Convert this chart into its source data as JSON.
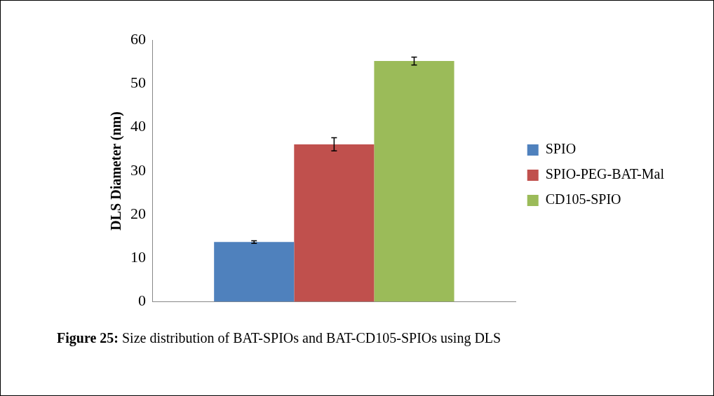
{
  "chart_data": {
    "type": "bar",
    "ylabel": "DLS Diameter (nm)",
    "categories": [
      null
    ],
    "series": [
      {
        "name": "SPIO",
        "color": "#4f81bd",
        "values": [
          13.7
        ],
        "errors": [
          0.3
        ]
      },
      {
        "name": "SPIO-PEG-BAT-Mal",
        "color": "#c0504d",
        "values": [
          36.1
        ],
        "errors": [
          1.5
        ]
      },
      {
        "name": "CD105-SPIO",
        "color": "#9bbb59",
        "values": [
          55.2
        ],
        "errors": [
          0.9
        ]
      }
    ],
    "ylim": [
      0,
      60
    ],
    "yticks": [
      0,
      10,
      20,
      30,
      40,
      50,
      60
    ],
    "grid": false,
    "legend": "right",
    "annotations": [
      "Figure 25: Size distribution of BAT-SPIOs and BAT-CD105-SPIOs using DLS"
    ]
  }
}
